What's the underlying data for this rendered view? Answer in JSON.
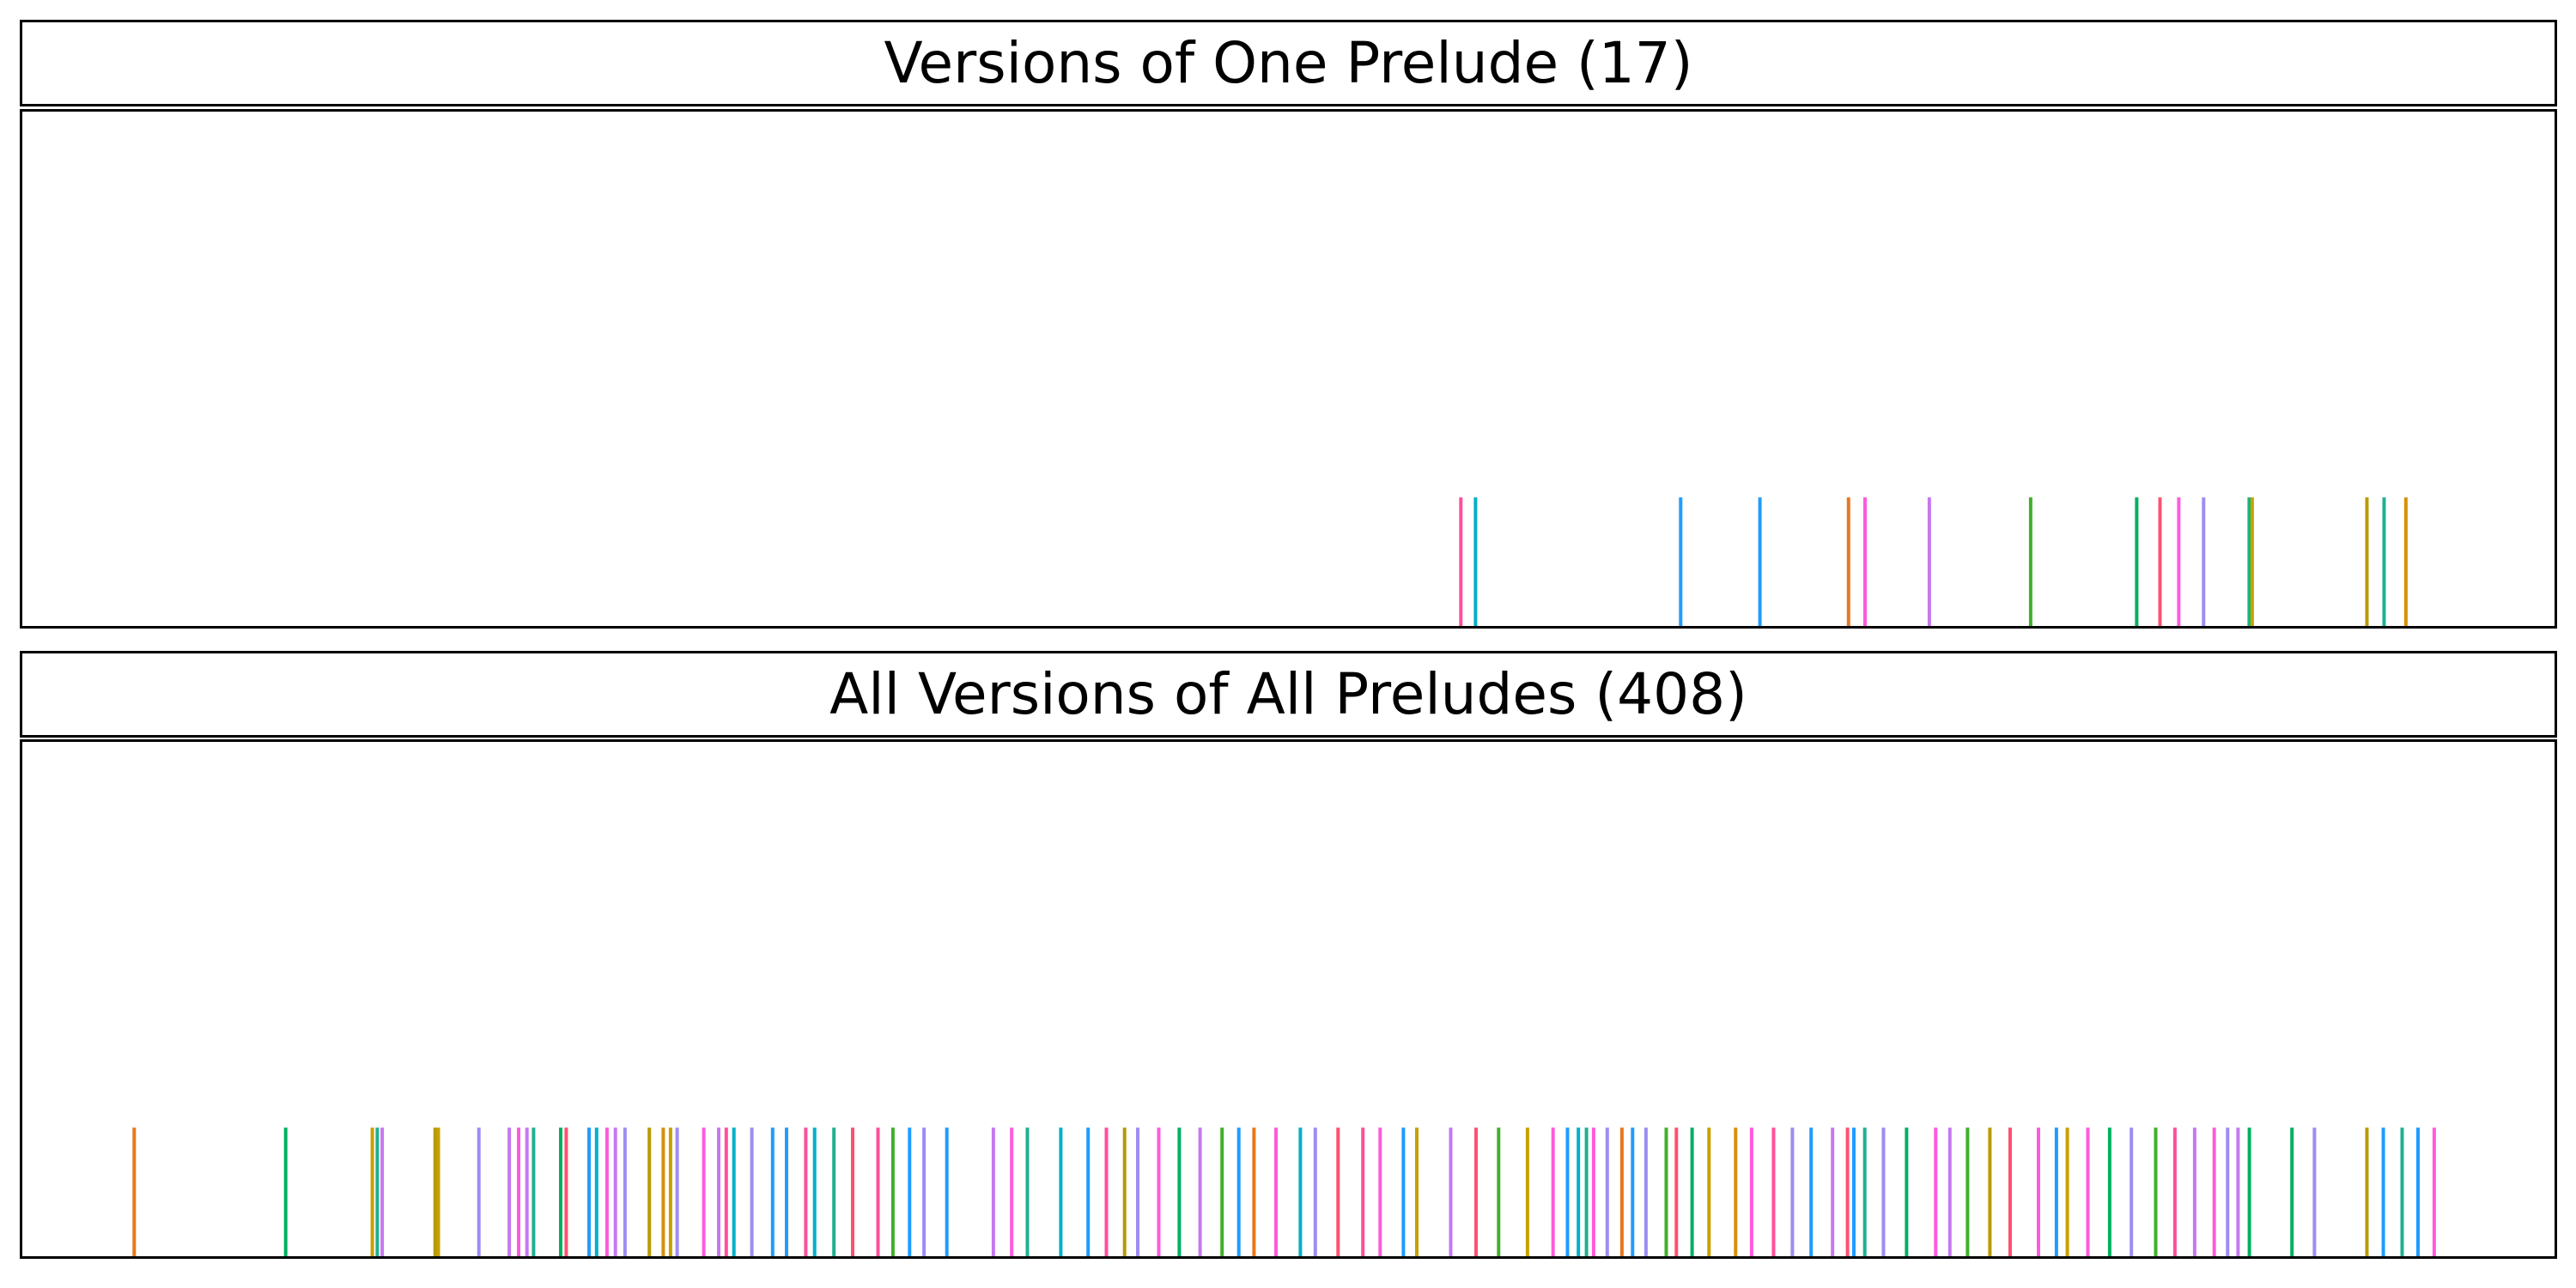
{
  "chart_data": [
    {
      "type": "rug",
      "title": "Versions of One Prelude (17)",
      "xlim": [
        0,
        1
      ],
      "ylim": [
        0,
        1
      ],
      "tick_height": 0.25,
      "x": [
        0.5681,
        0.5739,
        0.6549,
        0.6862,
        0.7212,
        0.7277,
        0.7531,
        0.7931,
        0.835,
        0.8442,
        0.8516,
        0.8614,
        0.8794,
        0.8806,
        0.9259,
        0.9327,
        0.9413
      ],
      "colors": [
        "#ff4f9a",
        "#00b0c8",
        "#1f9cff",
        "#1f9cff",
        "#e8771e",
        "#ff5adc",
        "#c678f0",
        "#3fb02a",
        "#00b060",
        "#ff5070",
        "#ff5adc",
        "#9e8cf2",
        "#18b57a",
        "#c8a000",
        "#b89a00",
        "#20b090",
        "#d8900a"
      ]
    },
    {
      "type": "rug",
      "title": "All Versions of All Preludes (408)",
      "xlim": [
        0,
        1
      ],
      "ylim": [
        0,
        1
      ],
      "tick_height": 0.25,
      "x": [
        0.0442,
        0.104,
        0.1382,
        0.1402,
        0.1421,
        0.163,
        0.1643,
        0.1803,
        0.1923,
        0.196,
        0.1993,
        0.2019,
        0.2126,
        0.2148,
        0.2238,
        0.2268,
        0.2309,
        0.2342,
        0.238,
        0.2476,
        0.2531,
        0.256,
        0.2586,
        0.2691,
        0.275,
        0.278,
        0.281,
        0.2881,
        0.2963,
        0.3018,
        0.3094,
        0.3129,
        0.3205,
        0.3279,
        0.3379,
        0.3438,
        0.3504,
        0.3561,
        0.3651,
        0.3835,
        0.3907,
        0.3969,
        0.4101,
        0.4209,
        0.4281,
        0.4353,
        0.4405,
        0.4488,
        0.4569,
        0.4651,
        0.4738,
        0.4804,
        0.4864,
        0.4951,
        0.5047,
        0.5106,
        0.5196,
        0.5294,
        0.5362,
        0.5454,
        0.5507,
        0.5641,
        0.5741,
        0.583,
        0.5944,
        0.6045,
        0.6102,
        0.6145,
        0.6177,
        0.6205,
        0.6259,
        0.6317,
        0.6359,
        0.6412,
        0.6492,
        0.6532,
        0.6594,
        0.6661,
        0.6766,
        0.6829,
        0.6916,
        0.699,
        0.7064,
        0.7149,
        0.7208,
        0.7233,
        0.7276,
        0.735,
        0.7441,
        0.7556,
        0.7612,
        0.7682,
        0.777,
        0.785,
        0.7962,
        0.8033,
        0.8076,
        0.8157,
        0.8243,
        0.8329,
        0.8425,
        0.8501,
        0.8579,
        0.8656,
        0.8709,
        0.875,
        0.8795,
        0.8963,
        0.9052,
        0.9259,
        0.9324,
        0.9398,
        0.9461,
        0.9525
      ],
      "colors": [
        "#e8771e",
        "#00b060",
        "#c8a000",
        "#20b090",
        "#c678f0",
        "#b89a00",
        "#c8a000",
        "#9e8cf2",
        "#c678f0",
        "#ff5adc",
        "#c678f0",
        "#20b090",
        "#00b060",
        "#ff5070",
        "#1f9cff",
        "#00b0c8",
        "#ff5adc",
        "#c678f0",
        "#9e8cf2",
        "#b89a00",
        "#d8900a",
        "#c8a000",
        "#9e8cf2",
        "#ff5adc",
        "#c678f0",
        "#ff4f9a",
        "#00b0c8",
        "#9e8cf2",
        "#1f9cff",
        "#1f9cff",
        "#ff4f9a",
        "#00b0c8",
        "#20b090",
        "#ff5070",
        "#ff4f9a",
        "#3fb02a",
        "#1f9cff",
        "#9e8cf2",
        "#1f9cff",
        "#c678f0",
        "#ff5adc",
        "#20b090",
        "#00b0c8",
        "#1f9cff",
        "#ff4f9a",
        "#b89a00",
        "#9e8cf2",
        "#ff5adc",
        "#00b060",
        "#c678f0",
        "#3fb02a",
        "#1f9cff",
        "#e8771e",
        "#ff5adc",
        "#00b0c8",
        "#9e8cf2",
        "#ff5070",
        "#ff4f9a",
        "#ff5adc",
        "#1f9cff",
        "#c8a000",
        "#c678f0",
        "#ff5070",
        "#3fb02a",
        "#c8a000",
        "#ff5adc",
        "#1f9cff",
        "#00b0c8",
        "#20b090",
        "#ff5adc",
        "#9e8cf2",
        "#e8771e",
        "#1f9cff",
        "#9e8cf2",
        "#3fb02a",
        "#ff5070",
        "#00b060",
        "#c8a000",
        "#d8900a",
        "#ff5adc",
        "#ff4f9a",
        "#9e8cf2",
        "#1f9cff",
        "#c678f0",
        "#ff5070",
        "#1f9cff",
        "#20b090",
        "#9e8cf2",
        "#00b060",
        "#ff5adc",
        "#c678f0",
        "#3fb02a",
        "#b89a00",
        "#ff5070",
        "#ff5adc",
        "#1f9cff",
        "#c8a000",
        "#ff5adc",
        "#00b060",
        "#9e8cf2",
        "#3fb02a",
        "#ff4f9a",
        "#c678f0",
        "#ff5adc",
        "#9e8cf2",
        "#c678f0",
        "#00b060",
        "#00b060",
        "#9e8cf2",
        "#b89a00",
        "#1f9cff",
        "#20b090",
        "#1f9cff",
        "#ff5adc"
      ]
    }
  ]
}
